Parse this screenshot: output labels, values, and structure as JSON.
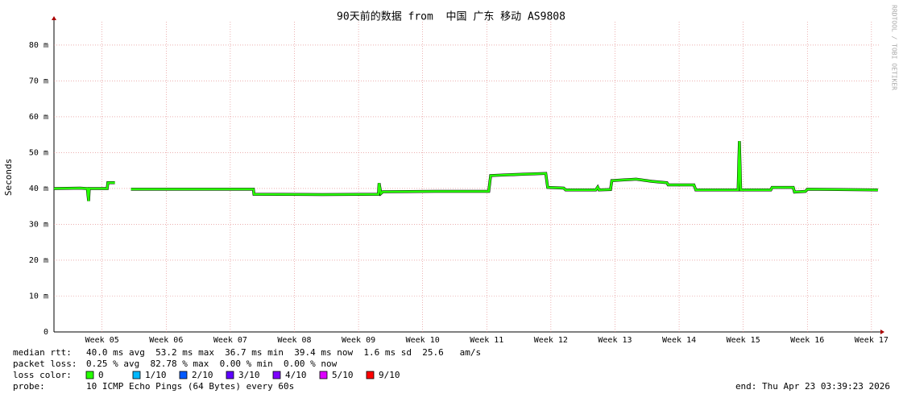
{
  "chart_data": {
    "type": "line",
    "title": "90天前的数据 from  中国 广东 移动 AS9808",
    "y_label": "Seconds",
    "watermark": "RRDTOOL / TOBI OETIKER",
    "ylim": [
      0,
      86.5
    ],
    "yticks": [
      {
        "value": 0,
        "label": "0"
      },
      {
        "value": 10,
        "label": "10 m"
      },
      {
        "value": 20,
        "label": "20 m"
      },
      {
        "value": 30,
        "label": "30 m"
      },
      {
        "value": 40,
        "label": "40 m"
      },
      {
        "value": 50,
        "label": "50 m"
      },
      {
        "value": 60,
        "label": "60 m"
      },
      {
        "value": 70,
        "label": "70 m"
      },
      {
        "value": 80,
        "label": "80 m"
      }
    ],
    "xlim": [
      4.25,
      17.14
    ],
    "xticks": [
      {
        "value": 5,
        "label": "Week 05"
      },
      {
        "value": 6,
        "label": "Week 06"
      },
      {
        "value": 7,
        "label": "Week 07"
      },
      {
        "value": 8,
        "label": "Week 08"
      },
      {
        "value": 9,
        "label": "Week 09"
      },
      {
        "value": 10,
        "label": "Week 10"
      },
      {
        "value": 11,
        "label": "Week 11"
      },
      {
        "value": 12,
        "label": "Week 12"
      },
      {
        "value": 13,
        "label": "Week 13"
      },
      {
        "value": 14,
        "label": "Week 14"
      },
      {
        "value": 15,
        "label": "Week 15"
      },
      {
        "value": 16,
        "label": "Week 16"
      },
      {
        "value": 17,
        "label": "Week 17"
      }
    ],
    "grid": true,
    "x": [
      4.25,
      4.66,
      4.77,
      4.79,
      4.8,
      5.08,
      5.09,
      5.2,
      5.25,
      5.45,
      6.17,
      7.36,
      7.37,
      8.43,
      9.31,
      9.32,
      9.35,
      9.38,
      10.19,
      11.03,
      11.06,
      11.57,
      11.92,
      11.95,
      12.2,
      12.23,
      12.7,
      12.73,
      12.75,
      12.93,
      12.95,
      13.33,
      13.58,
      13.81,
      13.83,
      14.23,
      14.26,
      14.92,
      14.94,
      14.96,
      15.43,
      15.45,
      15.78,
      15.8,
      15.97,
      16.0,
      17.1
    ],
    "series": [
      {
        "color": "#26ff00",
        "values": [
          40.0,
          40.1,
          40.0,
          36.5,
          40.0,
          40.0,
          41.6,
          41.6,
          null,
          39.8,
          39.8,
          39.8,
          38.4,
          38.3,
          38.4,
          41.5,
          38.6,
          39.1,
          39.2,
          39.2,
          43.6,
          44.0,
          44.2,
          40.3,
          40.1,
          39.6,
          39.6,
          40.4,
          39.6,
          39.7,
          42.2,
          42.6,
          42.0,
          41.6,
          41.0,
          41.0,
          39.6,
          39.6,
          53.2,
          39.6,
          39.6,
          40.3,
          40.3,
          39.0,
          39.2,
          39.8,
          39.6
        ]
      }
    ],
    "stats": [
      {
        "label": "median rtt:",
        "text": "40.0 ms avg  53.2 ms max  36.7 ms min  39.4 ms now  1.6 ms sd  25.6   am/s"
      },
      {
        "label": "packet loss:",
        "text": "0.25 % avg  82.78 % max  0.00 % min  0.00 % now"
      }
    ],
    "loss_label": "loss color:",
    "loss_legend": [
      {
        "name": "0",
        "color": "#26ff00"
      },
      {
        "name": "1/10",
        "color": "#00b8ff"
      },
      {
        "name": "2/10",
        "color": "#0059ff"
      },
      {
        "name": "3/10",
        "color": "#5e00ff"
      },
      {
        "name": "4/10",
        "color": "#7e00ff"
      },
      {
        "name": "5/10",
        "color": "#dd00ff"
      },
      {
        "name": "9/10",
        "color": "#ff0000"
      }
    ],
    "probe_label": "probe:",
    "probe": "10 ICMP Echo Pings (64 Bytes) every 60s",
    "end": "end: Thu Apr 23 03:39:23 2026"
  }
}
